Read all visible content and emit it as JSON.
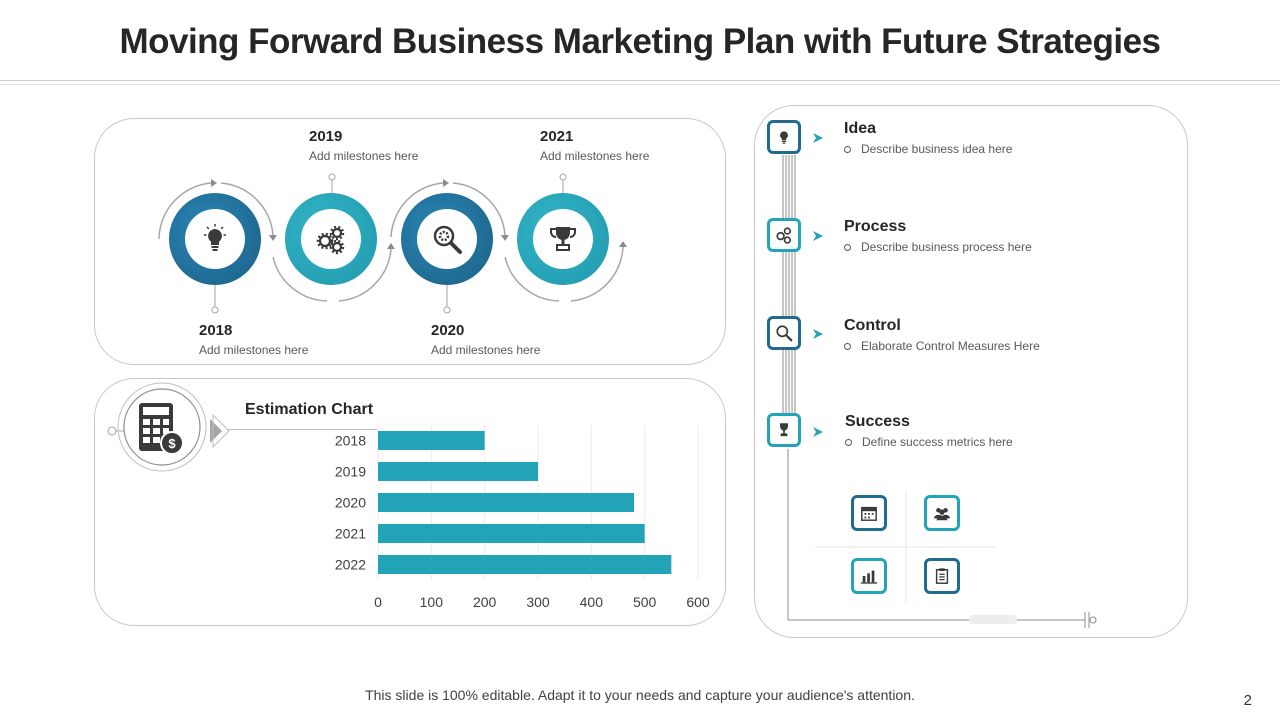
{
  "title": "Moving Forward Business Marketing Plan with Future Strategies",
  "milestones": [
    {
      "year": "2018",
      "text": "Add milestones here"
    },
    {
      "year": "2019",
      "text": "Add milestones here"
    },
    {
      "year": "2020",
      "text": "Add milestones here"
    },
    {
      "year": "2021",
      "text": "Add milestones here"
    }
  ],
  "milestone_icons": [
    "lightbulb-icon",
    "gears-icon",
    "gear-search-icon",
    "trophy-icon"
  ],
  "estimation": {
    "title": "Estimation Chart",
    "icon": "calculator-dollar-icon"
  },
  "chart_data": {
    "type": "bar",
    "orientation": "horizontal",
    "title": "Estimation Chart",
    "categories": [
      "2018",
      "2019",
      "2020",
      "2021",
      "2022"
    ],
    "values": [
      200,
      300,
      480,
      500,
      550
    ],
    "xlim": [
      0,
      600
    ],
    "xticks": [
      0,
      100,
      200,
      300,
      400,
      500,
      600
    ],
    "bar_color": "#22a3b8",
    "grid": true
  },
  "steps": [
    {
      "title": "Idea",
      "desc": "Describe business idea here",
      "icon": "lightbulb-icon"
    },
    {
      "title": "Process",
      "desc": "Describe business process here",
      "icon": "gears-icon"
    },
    {
      "title": "Control",
      "desc": "Elaborate Control Measures Here",
      "icon": "gear-search-icon"
    },
    {
      "title": "Success",
      "desc": "Define success metrics here",
      "icon": "trophy-icon"
    }
  ],
  "grid_icons": [
    "calendar-icon",
    "team-icon",
    "bar-chart-icon",
    "clipboard-icon"
  ],
  "colors": {
    "dark_blue": "#1f6c8f",
    "teal": "#22a3b8",
    "mid_blue": "#2a7fa8"
  },
  "footer": "This slide is 100% editable. Adapt it to your needs and capture your audience's attention.",
  "page_number": "2"
}
